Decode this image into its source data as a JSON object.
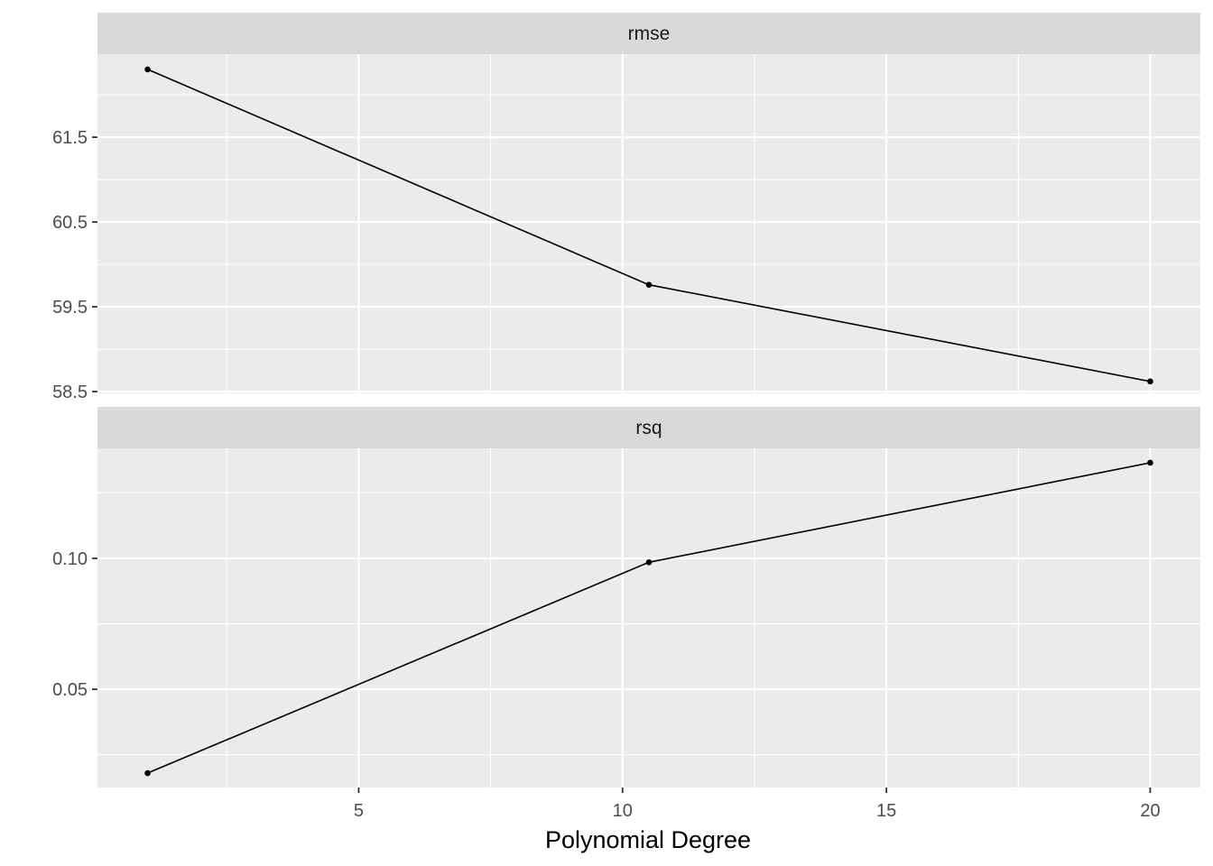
{
  "chart_data": {
    "type": "line",
    "xlabel": "Polynomial Degree",
    "x_ticks": [
      5,
      10,
      15,
      20
    ],
    "x_minor_ticks": [
      2.5,
      7.5,
      12.5,
      17.5
    ],
    "xlim": [
      0.05,
      20.95
    ],
    "panels": [
      {
        "strip": "rmse",
        "x": [
          1,
          10.5,
          20
        ],
        "y": [
          62.3,
          59.76,
          58.62
        ],
        "ylim": [
          58.48,
          62.48
        ],
        "y_ticks": [
          58.5,
          59.5,
          60.5,
          61.5
        ],
        "y_tick_labels": [
          "58.5",
          "59.5",
          "60.5",
          "61.5"
        ],
        "y_minor_ticks": [
          59.0,
          60.0,
          61.0,
          62.0
        ]
      },
      {
        "strip": "rsq",
        "x": [
          1,
          10.5,
          20
        ],
        "y": [
          0.018,
          0.0985,
          0.1365
        ],
        "ylim": [
          0.0125,
          0.142
        ],
        "y_ticks": [
          0.05,
          0.1
        ],
        "y_tick_labels": [
          "0.05",
          "0.10"
        ],
        "y_minor_ticks": [
          0.025,
          0.075,
          0.125
        ]
      }
    ]
  },
  "colors": {
    "panel_bg": "#ebebeb",
    "strip_bg": "#d9d9d9",
    "grid": "#ffffff",
    "line": "#000000",
    "tick_text": "#4d4d4d"
  }
}
